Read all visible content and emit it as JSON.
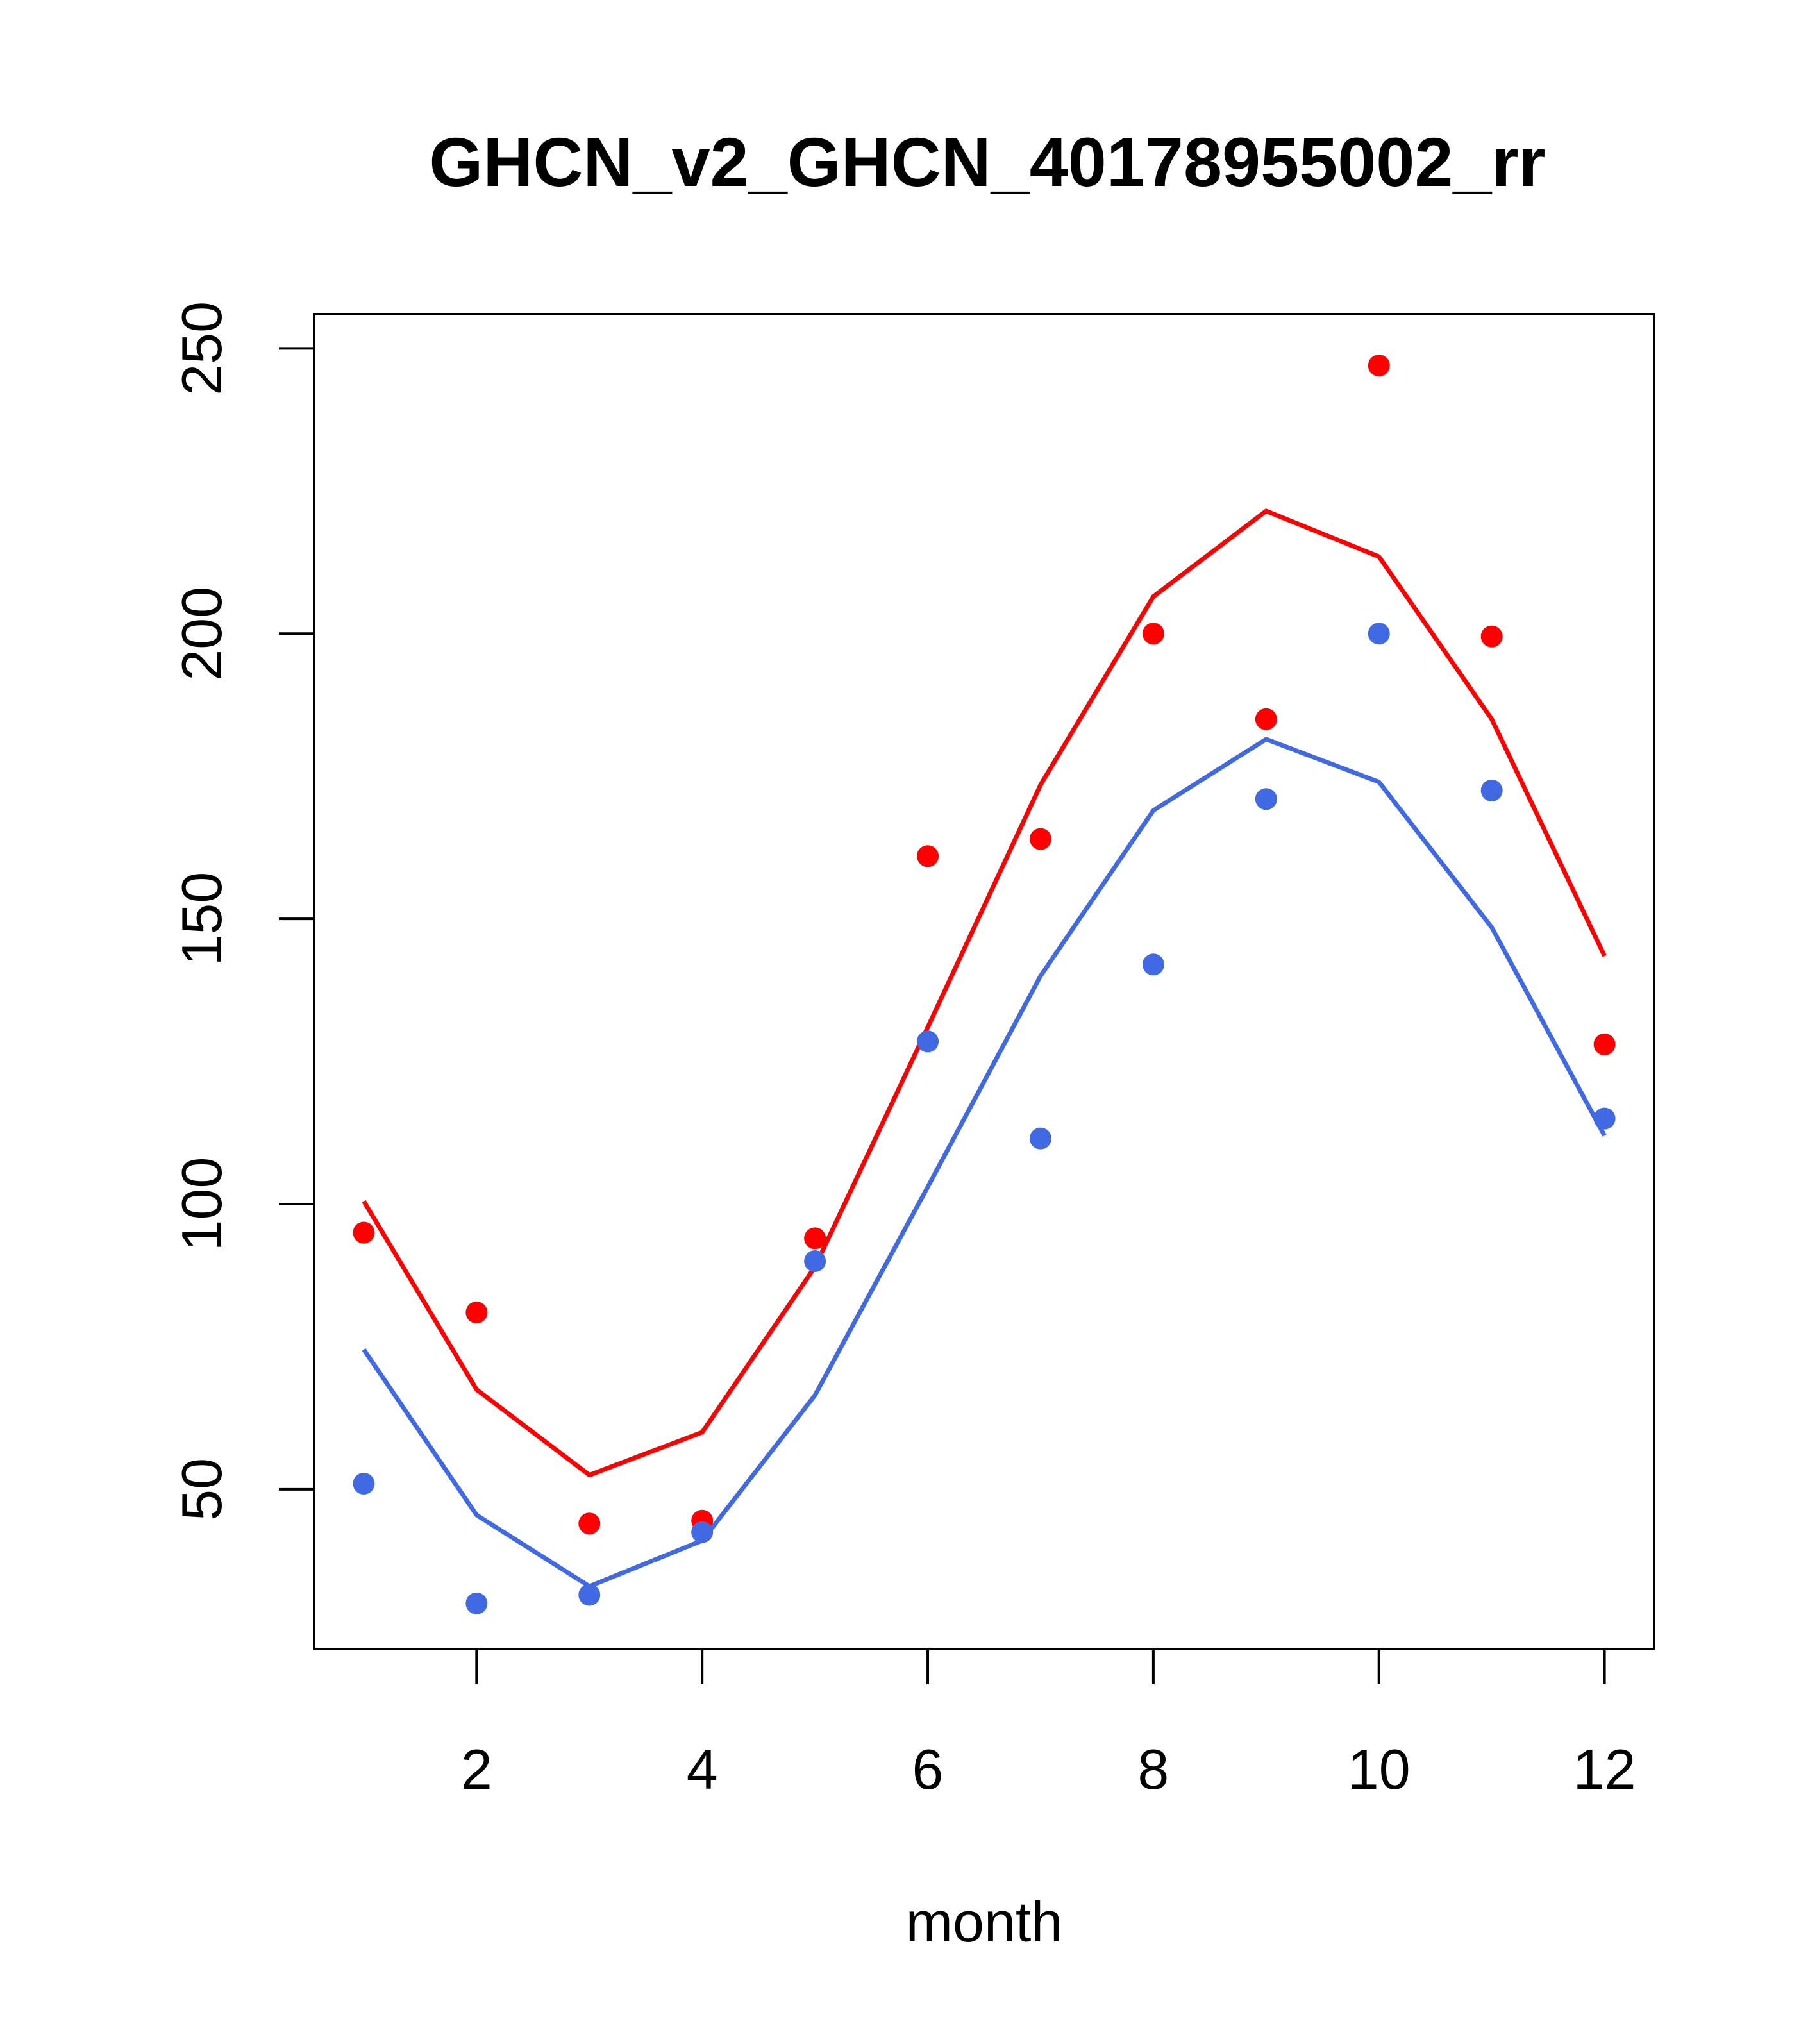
{
  "chart_data": {
    "type": "scatter",
    "title": "GHCN_v2_GHCN_40178955002_rr",
    "xlabel": "month",
    "ylabel": "",
    "xlim": [
      0.56,
      12.44
    ],
    "ylim": [
      22,
      256
    ],
    "xticks": [
      2,
      4,
      6,
      8,
      10,
      12
    ],
    "yticks": [
      50,
      100,
      150,
      200,
      250
    ],
    "grid": false,
    "legend": "none",
    "series": [
      {
        "color": "#ff0000",
        "x": [
          1,
          2,
          3,
          4,
          5,
          6,
          7,
          8,
          9,
          10,
          11,
          12
        ],
        "points": [
          95,
          81,
          44,
          44.5,
          94,
          161,
          164,
          200,
          185,
          247,
          199.5,
          128
        ],
        "line": [
          100.5,
          67.5,
          52.5,
          60,
          89,
          131,
          173.5,
          206.5,
          221.5,
          213.5,
          185,
          143.5
        ]
      },
      {
        "color": "#4169e1",
        "x": [
          1,
          2,
          3,
          4,
          5,
          6,
          7,
          8,
          9,
          10,
          11,
          12
        ],
        "points": [
          51,
          30,
          31.5,
          42.5,
          90,
          128.5,
          111.5,
          142,
          171,
          200,
          172.5,
          115
        ],
        "line": [
          74.5,
          45.5,
          33,
          41,
          66.5,
          103,
          140,
          169,
          181.5,
          174,
          148.5,
          112
        ]
      }
    ]
  }
}
